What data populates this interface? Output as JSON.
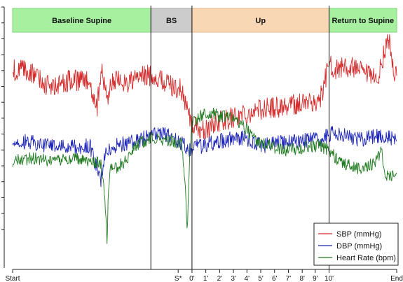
{
  "chart_data": {
    "type": "line",
    "title": "",
    "xlabel": "",
    "ylabel": "",
    "grid": false,
    "legend_position": "bottom-right",
    "x_range": [
      0,
      100
    ],
    "y_range": [
      0,
      100
    ],
    "phases": [
      {
        "label": "Baseline Supine",
        "start": 0,
        "end": 36,
        "color": "#a6f0a0",
        "border": "#7fd97a"
      },
      {
        "label": "BS",
        "start": 36,
        "end": 46.7,
        "color": "#cccccc",
        "border": "#aaaaaa"
      },
      {
        "label": "Up",
        "start": 46.7,
        "end": 82.4,
        "color": "#f8d7b4",
        "border": "#e8b98a"
      },
      {
        "label": "Return to Supine",
        "start": 82.4,
        "end": 100,
        "color": "#a6f0a0",
        "border": "#7fd97a"
      }
    ],
    "vertical_markers": [
      36,
      46.7,
      82.4
    ],
    "x_ticks": [
      {
        "label": "Start",
        "x": 0
      },
      {
        "label": "S*",
        "x": 43.1
      },
      {
        "label": "0'",
        "x": 46.7
      },
      {
        "label": "1'",
        "x": 50.3
      },
      {
        "label": "2'",
        "x": 53.9
      },
      {
        "label": "3'",
        "x": 57.5
      },
      {
        "label": "4'",
        "x": 61.0
      },
      {
        "label": "5'",
        "x": 64.6
      },
      {
        "label": "6'",
        "x": 68.2
      },
      {
        "label": "7'",
        "x": 71.8
      },
      {
        "label": "8'",
        "x": 75.4
      },
      {
        "label": "9'",
        "x": 78.8
      },
      {
        "label": "10'",
        "x": 82.4
      },
      {
        "label": "End",
        "x": 100
      }
    ],
    "series": [
      {
        "name": "SBP (mmHg)",
        "color": "#d42a2a",
        "noise": 4.2,
        "x": [
          0,
          5,
          10,
          15,
          20,
          22,
          23,
          24,
          25,
          26,
          30,
          33,
          36,
          40,
          44,
          46.7,
          50,
          53,
          56,
          60,
          65,
          70,
          75,
          80,
          82.4,
          84,
          88,
          92,
          95,
          97,
          98,
          99,
          100
        ],
        "y": [
          76,
          75,
          69,
          72,
          71,
          62,
          76,
          69,
          66,
          72,
          71,
          73,
          74,
          71,
          68,
          55,
          52,
          56,
          57,
          59,
          61,
          62,
          63,
          64,
          78,
          76,
          77,
          74,
          72,
          84,
          88,
          76,
          74
        ]
      },
      {
        "name": "DBP (mmHg)",
        "color": "#1c24b8",
        "noise": 3,
        "x": [
          0,
          5,
          10,
          15,
          20,
          23,
          24,
          25,
          27,
          30,
          33,
          36,
          40,
          44,
          45.5,
          46.7,
          50,
          55,
          60,
          65,
          70,
          75,
          80,
          82.4,
          85,
          90,
          95,
          97,
          100
        ],
        "y": [
          49,
          48,
          47,
          46,
          47,
          34,
          44,
          45,
          47,
          48,
          49,
          52,
          51,
          48,
          45,
          46,
          47,
          49,
          50,
          47,
          48,
          49,
          49,
          51,
          52,
          49,
          51,
          50,
          49
        ]
      },
      {
        "name": "Heart Rate (bpm)",
        "color": "#1f7a1f",
        "noise": 2.4,
        "x": [
          0,
          5,
          10,
          15,
          20,
          23,
          24,
          24.6,
          25,
          25.6,
          27,
          30,
          32,
          36,
          40,
          44,
          45,
          45.5,
          46,
          46.7,
          50,
          52,
          55,
          58,
          60,
          63,
          67,
          70,
          75,
          80,
          82.4,
          85,
          90,
          94,
          96,
          97,
          98,
          100
        ],
        "y": [
          41,
          42,
          41,
          42,
          41,
          40,
          26,
          10,
          32,
          38,
          38,
          42,
          47,
          50,
          49,
          48,
          30,
          15,
          40,
          56,
          59,
          59,
          58,
          57,
          55,
          49,
          47,
          45,
          46,
          47,
          45,
          41,
          38,
          40,
          45,
          36,
          35,
          35
        ]
      }
    ]
  }
}
